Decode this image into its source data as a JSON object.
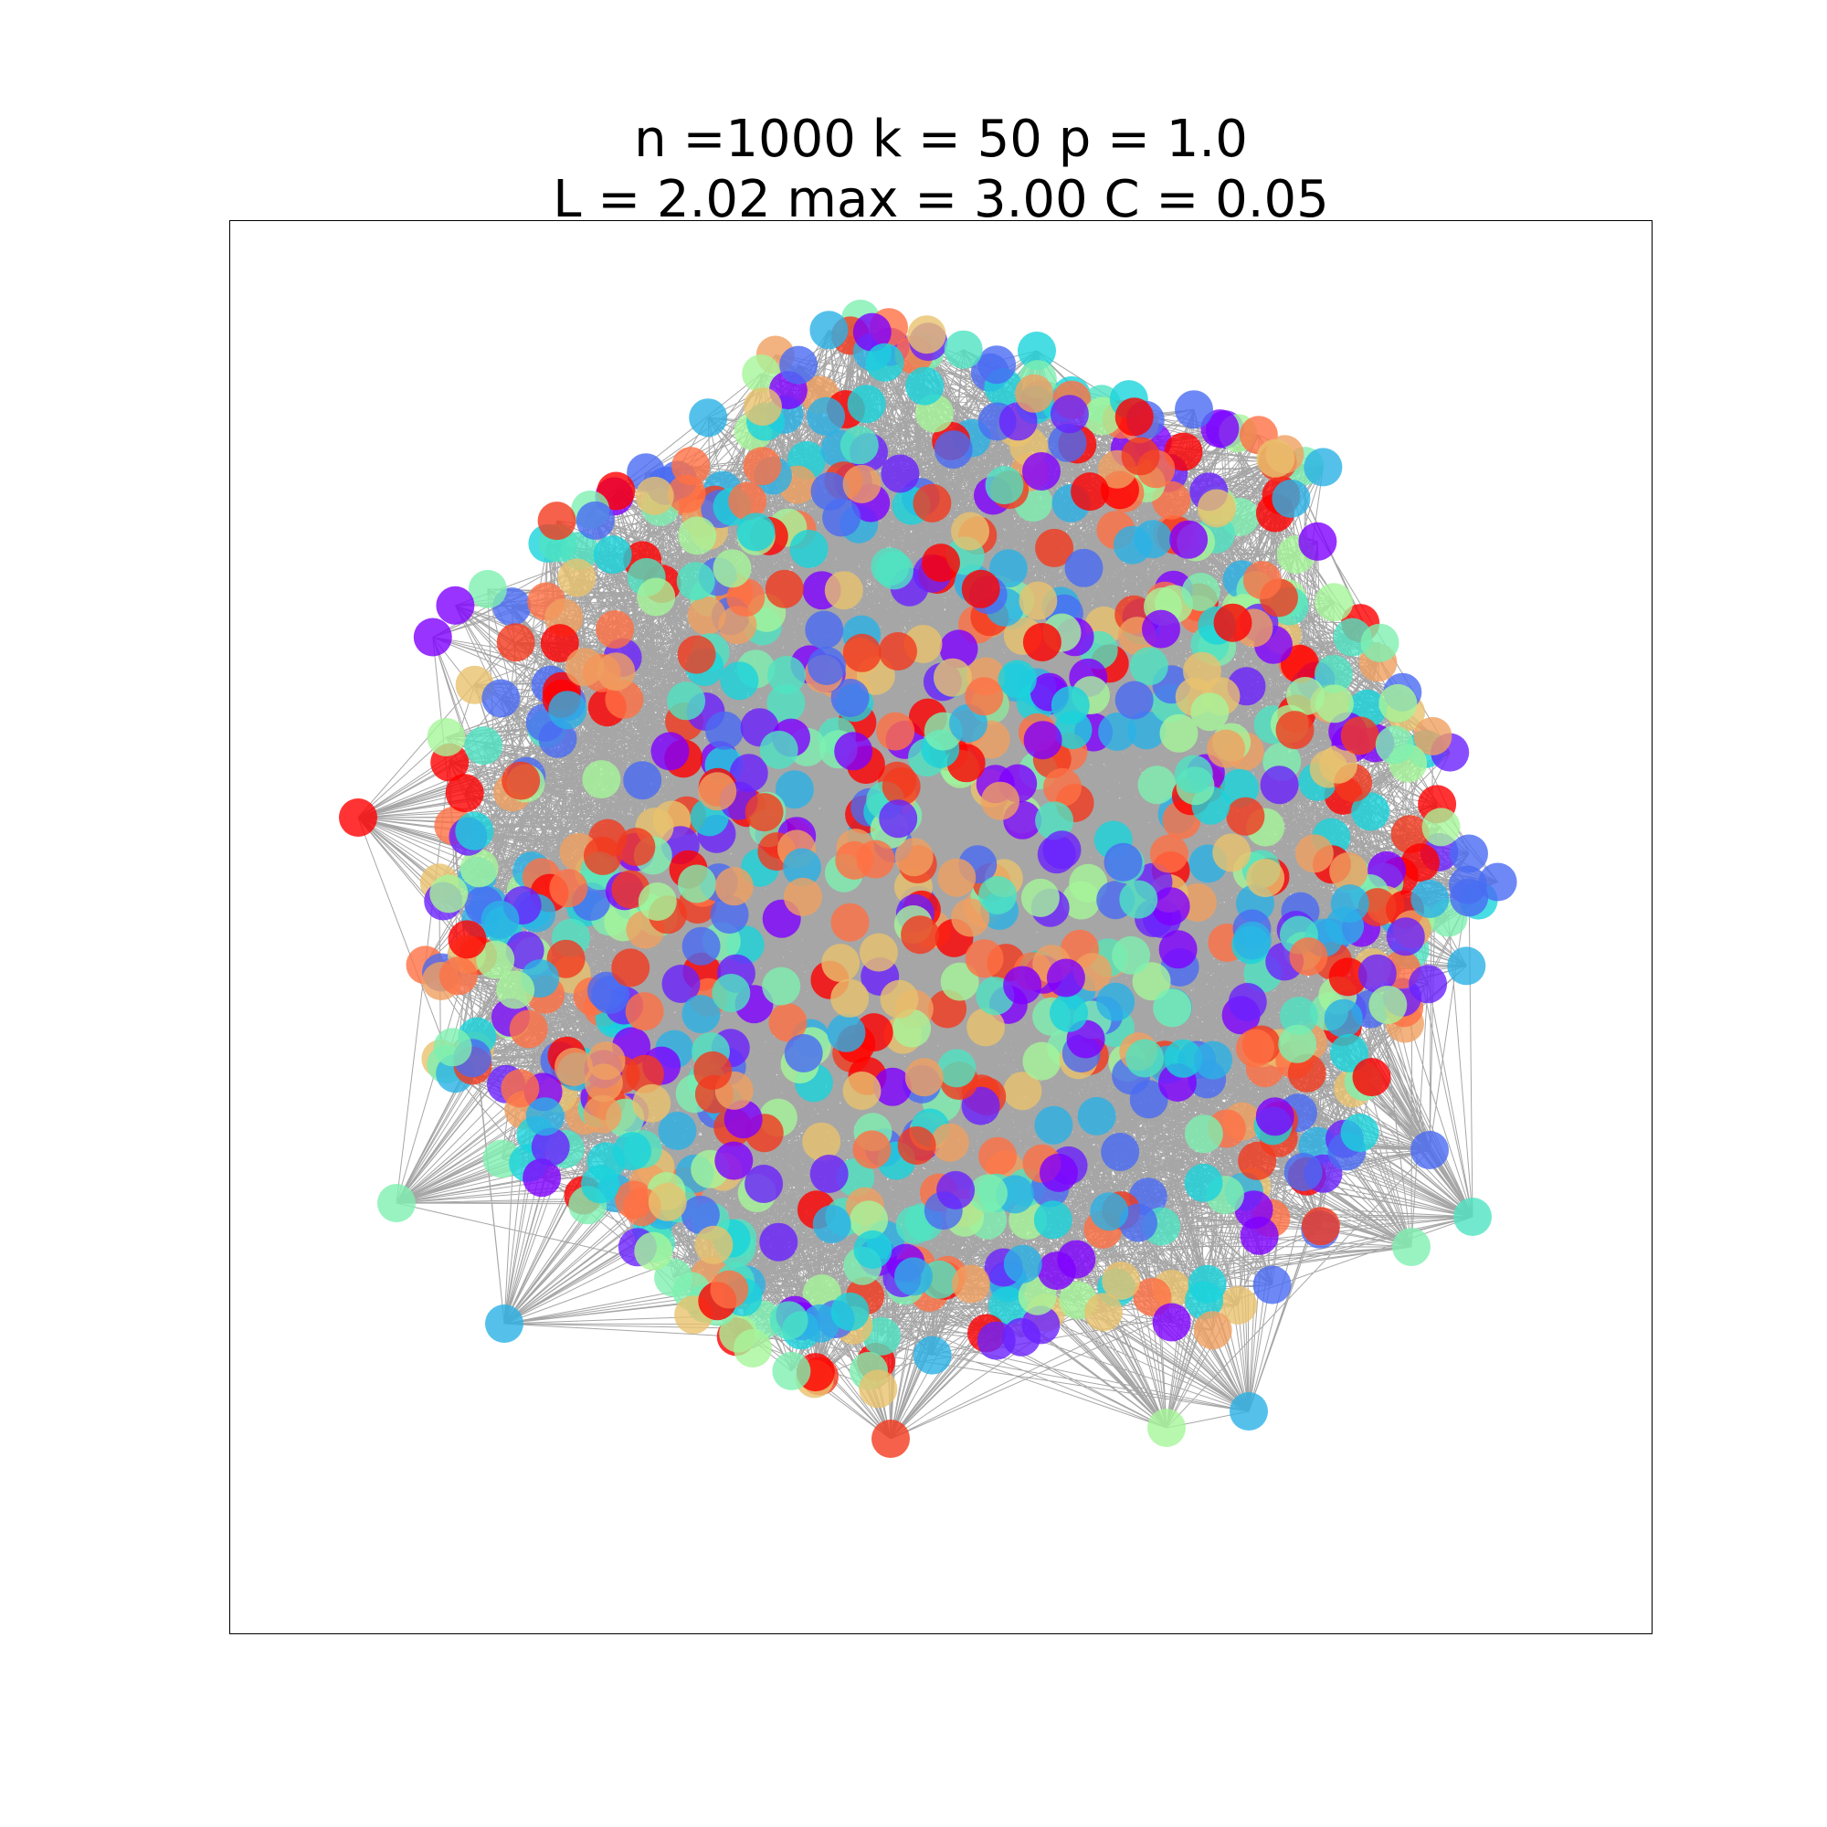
{
  "title": {
    "line1": "n =1000 k = 50 p = 1.0",
    "line2": "L = 2.02 max = 3.00 C = 0.05"
  },
  "graph": {
    "node_count": 1000,
    "k": 50,
    "p": 1.0,
    "edge_color": "#000000",
    "node_palette": [
      "#8000ff",
      "#6a22fe",
      "#4a6cf3",
      "#2bb2e6",
      "#1ad3dc",
      "#4fe3c2",
      "#7ef0b0",
      "#a6f59a",
      "#e8c26e",
      "#f0a060",
      "#ff7043",
      "#f23a1e",
      "#ff0000"
    ]
  }
}
